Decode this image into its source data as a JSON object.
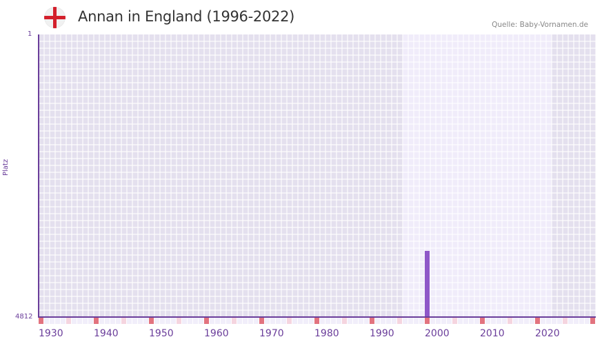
{
  "header": {
    "title": "Annan in England (1996-2022)",
    "source": "Quelle: Baby-Vornamen.de",
    "flag_icon": "england-flag-icon"
  },
  "colors": {
    "axis": "#6a3d9a",
    "bar": "#8e57c8",
    "band_dark": "#e4e0ee",
    "band_light": "#f0ecfa",
    "marker_decade": "#e2737f",
    "marker_half": "#f5d5df",
    "marker_other": "#f1eefa",
    "flag_cross": "#d31f2b"
  },
  "chart_data": {
    "type": "bar",
    "title": "Annan in England (1996-2022)",
    "xlabel": "",
    "ylabel": "Platz",
    "y_inverted": true,
    "ylim": [
      4812,
      1
    ],
    "xlim": [
      1930,
      2030
    ],
    "x_ticks": [
      "1930",
      "1940",
      "1950",
      "1960",
      "1970",
      "1980",
      "1990",
      "2000",
      "2010",
      "2020"
    ],
    "y_ticks": [
      "1",
      "4812"
    ],
    "highlight_range": [
      1996,
      2022
    ],
    "categories": [
      2000
    ],
    "series": [
      {
        "name": "Platz",
        "values": [
          3686
        ]
      }
    ],
    "grid": true,
    "legend": null
  },
  "axis": {
    "y_top": "1",
    "y_bottom": "4812",
    "y_label": "Platz",
    "x_labels": [
      "1930",
      "1940",
      "1950",
      "1960",
      "1970",
      "1980",
      "1990",
      "2000",
      "2010",
      "2020"
    ]
  }
}
